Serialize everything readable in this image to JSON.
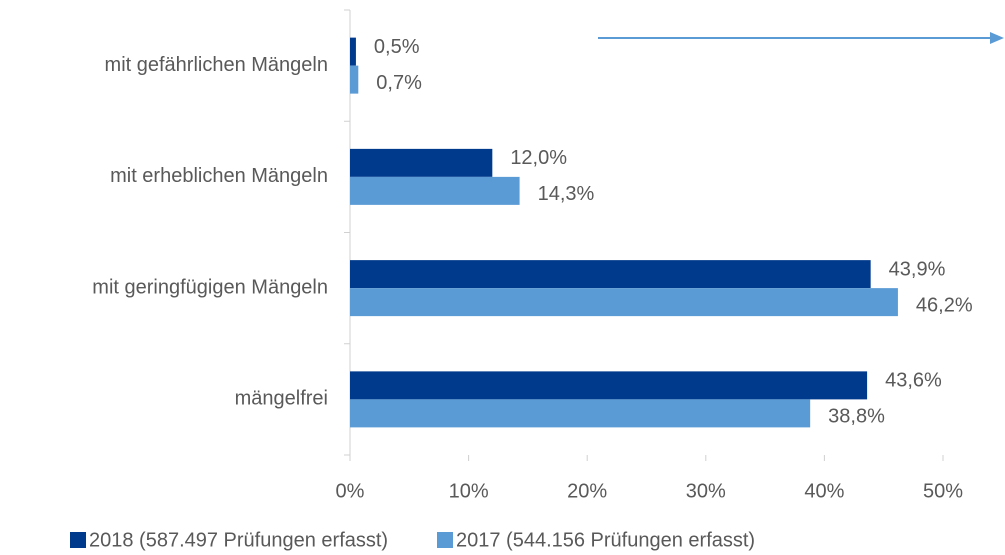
{
  "chart_data": {
    "type": "bar",
    "orientation": "horizontal",
    "categories": [
      "mit gefährlichen Mängeln",
      "mit erheblichen Mängeln",
      "mit geringfügigen Mängeln",
      "mängelfrei"
    ],
    "series": [
      {
        "name": "2018 (587.497 Prüfungen erfasst)",
        "color": "#003a8c",
        "values": [
          0.5,
          12.0,
          43.9,
          43.6
        ],
        "value_labels": [
          "0,5%",
          "12,0%",
          "43,9%",
          "43,6%"
        ]
      },
      {
        "name": "2017 (544.156 Prüfungen erfasst)",
        "color": "#5b9bd5",
        "values": [
          0.7,
          14.3,
          46.2,
          38.8
        ],
        "value_labels": [
          "0,7%",
          "14,3%",
          "46,2%",
          "38,8%"
        ]
      }
    ],
    "xlim": [
      0,
      50
    ],
    "xticks": [
      {
        "value": 0,
        "label": "0%"
      },
      {
        "value": 10,
        "label": "10%"
      },
      {
        "value": 20,
        "label": "20%"
      },
      {
        "value": 30,
        "label": "30%"
      },
      {
        "value": 40,
        "label": "40%"
      },
      {
        "value": 50,
        "label": "50%"
      }
    ],
    "legend": "bottom"
  }
}
